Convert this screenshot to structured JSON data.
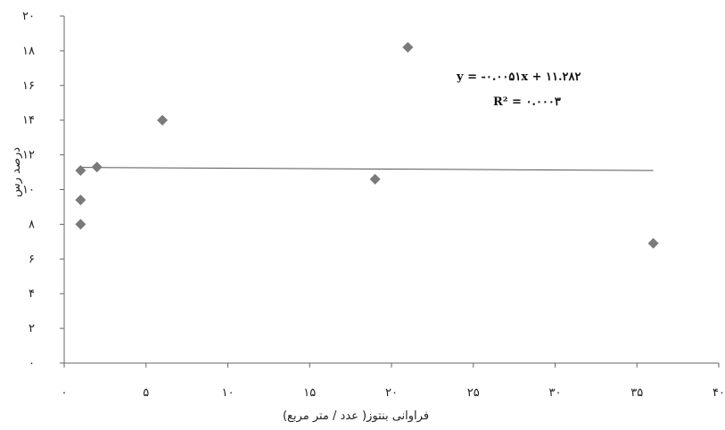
{
  "chart_data": {
    "type": "scatter",
    "xlabel": "فراوانی بنتوز( عدد / متر مربع)",
    "ylabel": "درصد رس",
    "xlim": [
      0,
      40
    ],
    "ylim": [
      0,
      20
    ],
    "x_ticks": [
      0,
      5,
      10,
      15,
      20,
      25,
      30,
      35,
      40
    ],
    "x_tick_labels": [
      "۰",
      "۵",
      "۱۰",
      "۱۵",
      "۲۰",
      "۲۵",
      "۳۰",
      "۳۵",
      "۴۰"
    ],
    "y_ticks": [
      0,
      2,
      4,
      6,
      8,
      10,
      12,
      14,
      16,
      18,
      20
    ],
    "y_tick_labels": [
      "۰",
      "۲",
      "۴",
      "۶",
      "۸",
      "۱۰",
      "۱۲",
      "۱۴",
      "۱۶",
      "۱۸",
      "۲۰"
    ],
    "grid": false,
    "points": [
      {
        "x": 1,
        "y": 11.1
      },
      {
        "x": 2,
        "y": 11.3
      },
      {
        "x": 1,
        "y": 9.4
      },
      {
        "x": 1,
        "y": 8.0
      },
      {
        "x": 6,
        "y": 14.0
      },
      {
        "x": 19,
        "y": 10.6
      },
      {
        "x": 21,
        "y": 18.2
      },
      {
        "x": 36,
        "y": 6.9
      }
    ],
    "trendline": {
      "slope": -0.0051,
      "intercept": 11.282,
      "x_range": [
        1,
        36
      ]
    },
    "marker_color": "#7a7a7a",
    "annotations": {
      "equation": "y = -۰.۰۰۵۱x + ۱۱.۲۸۲",
      "r_squared": "R² = ۰.۰۰۰۳"
    }
  }
}
